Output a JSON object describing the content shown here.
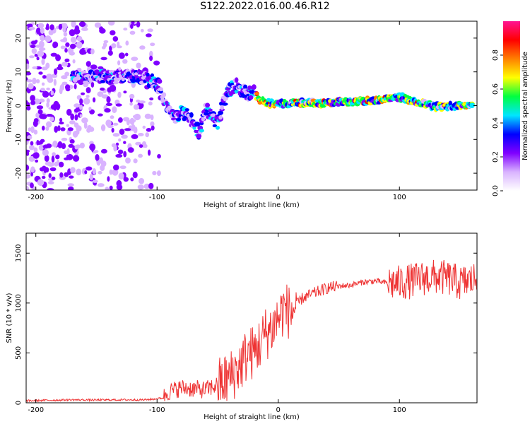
{
  "figure": {
    "title": "S122.2022.016.00.46.R12"
  },
  "chart_data": [
    {
      "type": "heatmap",
      "xlabel": "Height of straight line (km)",
      "ylabel": "Frequency (Hz)",
      "xlim": [
        -208,
        164
      ],
      "ylim": [
        -25,
        25
      ],
      "xticks": [
        -200,
        -100,
        0,
        100
      ],
      "yticks": [
        -20,
        -10,
        0,
        10,
        20
      ],
      "colorbar": {
        "label": "Normalized spectral amplitude",
        "range": [
          0,
          1
        ],
        "ticks": [
          0.0,
          0.2,
          0.4,
          0.6,
          0.8
        ],
        "tick_labels": [
          "0.0",
          "0.2",
          "0.4",
          "0.6",
          "0.8"
        ],
        "colors": [
          "#ffffff",
          "#d9b3ff",
          "#8000ff",
          "#0000ff",
          "#00e5ff",
          "#00ff40",
          "#ffff00",
          "#ff8000",
          "#ff0000",
          "#ff1493"
        ]
      },
      "ridge": [
        {
          "x": -170,
          "y": 8.5
        },
        {
          "x": -150,
          "y": 8.8
        },
        {
          "x": -130,
          "y": 8.2
        },
        {
          "x": -115,
          "y": 8.8
        },
        {
          "x": -105,
          "y": 7.5
        },
        {
          "x": -98,
          "y": 5.5
        },
        {
          "x": -95,
          "y": 2.0
        },
        {
          "x": -90,
          "y": -2.0
        },
        {
          "x": -85,
          "y": -4.0
        },
        {
          "x": -80,
          "y": -1.5
        },
        {
          "x": -75,
          "y": -3.0
        },
        {
          "x": -70,
          "y": -5.0
        },
        {
          "x": -65,
          "y": -8.5
        },
        {
          "x": -60,
          "y": -0.5
        },
        {
          "x": -55,
          "y": -3.0
        },
        {
          "x": -50,
          "y": -5.5
        },
        {
          "x": -45,
          "y": 1.0
        },
        {
          "x": -40,
          "y": 5.0
        },
        {
          "x": -35,
          "y": 6.0
        },
        {
          "x": -30,
          "y": 4.5
        },
        {
          "x": -25,
          "y": 3.5
        },
        {
          "x": -20,
          "y": 3.8
        },
        {
          "x": -15,
          "y": 1.5
        },
        {
          "x": -10,
          "y": 1.2
        },
        {
          "x": -5,
          "y": 0.5
        },
        {
          "x": 0,
          "y": 0.5
        },
        {
          "x": 10,
          "y": 0.7
        },
        {
          "x": 20,
          "y": 0.8
        },
        {
          "x": 30,
          "y": 0.7
        },
        {
          "x": 40,
          "y": 0.8
        },
        {
          "x": 50,
          "y": 1.0
        },
        {
          "x": 60,
          "y": 1.2
        },
        {
          "x": 70,
          "y": 1.3
        },
        {
          "x": 80,
          "y": 1.5
        },
        {
          "x": 90,
          "y": 2.2
        },
        {
          "x": 100,
          "y": 2.5
        },
        {
          "x": 110,
          "y": 1.5
        },
        {
          "x": 120,
          "y": 0.5
        },
        {
          "x": 130,
          "y": -0.3
        },
        {
          "x": 140,
          "y": -0.2
        },
        {
          "x": 150,
          "y": 0.0
        },
        {
          "x": 160,
          "y": 0.0
        }
      ]
    },
    {
      "type": "line",
      "xlabel": "Height of straight line (km)",
      "ylabel": "SNR (10 * v/v)",
      "xlim": [
        -208,
        164
      ],
      "ylim": [
        0,
        1700
      ],
      "xticks": [
        -200,
        -100,
        0,
        100
      ],
      "yticks": [
        0,
        500,
        1000,
        1500
      ],
      "color": "#ee3333",
      "series": [
        {
          "x": [
            -208,
            -190,
            -170,
            -150,
            -130,
            -110,
            -100,
            -95,
            -92,
            -88,
            -80,
            -70,
            -60,
            -50,
            -40,
            -30,
            -25,
            -20,
            -15,
            -10,
            -5,
            0,
            5,
            10,
            20,
            30,
            40,
            50,
            60,
            70,
            80,
            90,
            100,
            110,
            120,
            130,
            140,
            150,
            160,
            164
          ],
          "y": [
            20,
            25,
            30,
            28,
            30,
            30,
            40,
            50,
            100,
            120,
            150,
            140,
            130,
            180,
            250,
            400,
            500,
            500,
            600,
            700,
            750,
            850,
            950,
            900,
            1050,
            1100,
            1150,
            1170,
            1180,
            1210,
            1220,
            1200,
            1200,
            1220,
            1250,
            1260,
            1250,
            1200,
            1230,
            1250
          ]
        }
      ]
    }
  ]
}
